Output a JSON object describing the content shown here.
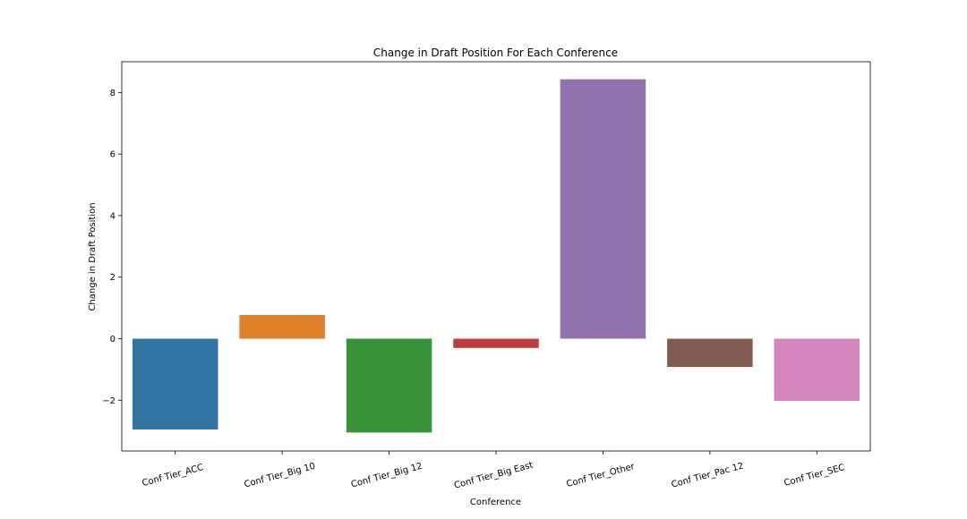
{
  "chart_data": {
    "type": "bar",
    "title": "Change in Draft Position For Each Conference",
    "xlabel": "Conference",
    "ylabel": "Change in Draft Position",
    "categories": [
      "Conf Tier_ACC",
      "Conf Tier_Big 10",
      "Conf Tier_Big 12",
      "Conf Tier_Big East",
      "Conf Tier_Other",
      "Conf Tier_Pac 12",
      "Conf Tier_SEC"
    ],
    "values": [
      -2.95,
      0.77,
      -3.05,
      -0.3,
      8.43,
      -0.92,
      -2.02
    ],
    "colors": [
      "#3274a1",
      "#e1812c",
      "#3a923a",
      "#c03d3e",
      "#9372b2",
      "#845b53",
      "#d684bd"
    ],
    "ylim": [
      -3.65,
      9.0
    ],
    "yticks": [
      -2,
      0,
      2,
      4,
      6,
      8
    ],
    "ytick_labels": [
      "−2",
      "0",
      "2",
      "4",
      "6",
      "8"
    ],
    "xtick_rotation": -15,
    "grid": false,
    "legend": "none"
  }
}
